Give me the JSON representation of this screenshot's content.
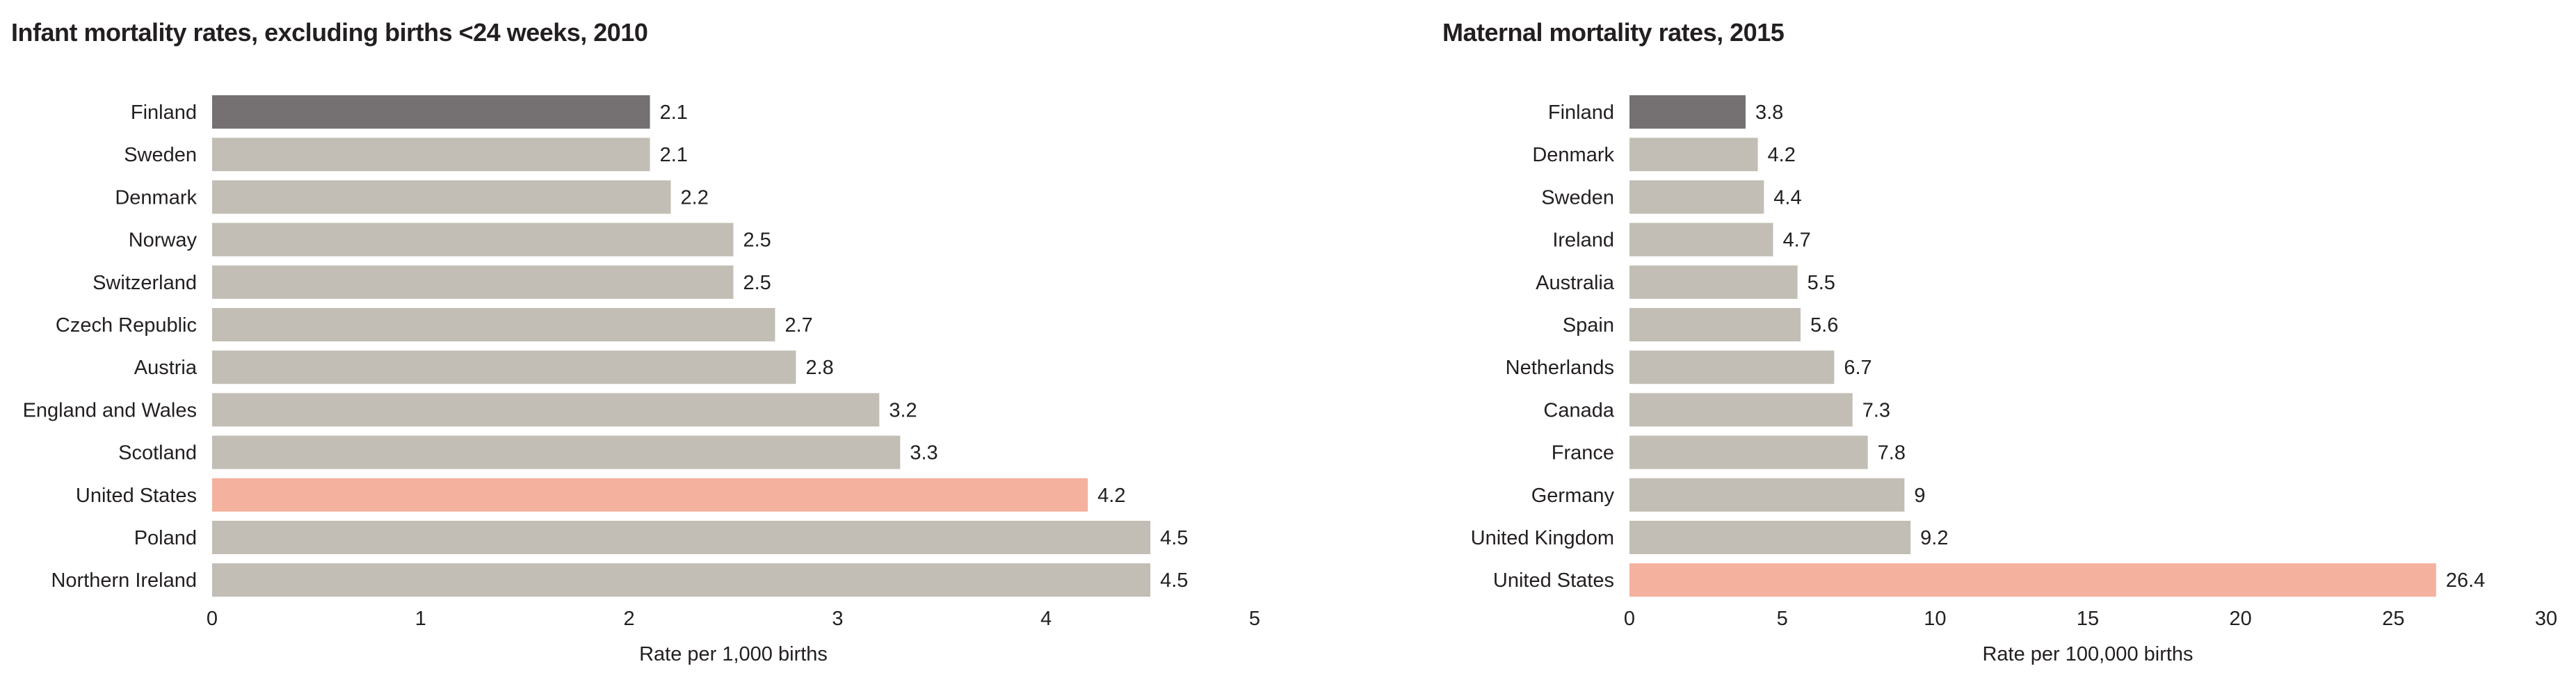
{
  "colors": {
    "base_bar": "#c2beb5",
    "first_bar": "#757071",
    "highlight_bar": "#f3b19e",
    "text": "#231f20"
  },
  "chart_data": [
    {
      "type": "bar",
      "orientation": "horizontal",
      "title": "Infant mortality rates, excluding births <24 weeks, 2010",
      "xlabel": "Rate per 1,000 births",
      "ylabel": "",
      "xlim": [
        0,
        5
      ],
      "ticks": [
        "0",
        "1",
        "2",
        "3",
        "4",
        "5"
      ],
      "tick_values": [
        0,
        1,
        2,
        3,
        4,
        5
      ],
      "grid": false,
      "categories": [
        "Finland",
        "Sweden",
        "Denmark",
        "Norway",
        "Switzerland",
        "Czech Republic",
        "Austria",
        "England and Wales",
        "Scotland",
        "United States",
        "Poland",
        "Northern Ireland"
      ],
      "values": [
        2.1,
        2.1,
        2.2,
        2.5,
        2.5,
        2.7,
        2.8,
        3.2,
        3.3,
        4.2,
        4.5,
        4.5
      ],
      "value_labels": [
        "2.1",
        "2.1",
        "2.2",
        "2.5",
        "2.5",
        "2.7",
        "2.8",
        "3.2",
        "3.3",
        "4.2",
        "4.5",
        "4.5"
      ],
      "bar_colors": [
        "first_bar",
        "base_bar",
        "base_bar",
        "base_bar",
        "base_bar",
        "base_bar",
        "base_bar",
        "base_bar",
        "base_bar",
        "highlight_bar",
        "base_bar",
        "base_bar"
      ]
    },
    {
      "type": "bar",
      "orientation": "horizontal",
      "title": "Maternal mortality rates, 2015",
      "xlabel": "Rate per 100,000 births",
      "ylabel": "",
      "xlim": [
        0,
        30
      ],
      "ticks": [
        "0",
        "5",
        "10",
        "15",
        "20",
        "25",
        "30"
      ],
      "tick_values": [
        0,
        5,
        10,
        15,
        20,
        25,
        30
      ],
      "grid": false,
      "categories": [
        "Finland",
        "Denmark",
        "Sweden",
        "Ireland",
        "Australia",
        "Spain",
        "Netherlands",
        "Canada",
        "France",
        "Germany",
        "United Kingdom",
        "United States"
      ],
      "values": [
        3.8,
        4.2,
        4.4,
        4.7,
        5.5,
        5.6,
        6.7,
        7.3,
        7.8,
        9,
        9.2,
        26.4
      ],
      "value_labels": [
        "3.8",
        "4.2",
        "4.4",
        "4.7",
        "5.5",
        "5.6",
        "6.7",
        "7.3",
        "7.8",
        "9",
        "9.2",
        "26.4"
      ],
      "bar_colors": [
        "first_bar",
        "base_bar",
        "base_bar",
        "base_bar",
        "base_bar",
        "base_bar",
        "base_bar",
        "base_bar",
        "base_bar",
        "base_bar",
        "base_bar",
        "highlight_bar"
      ]
    }
  ]
}
